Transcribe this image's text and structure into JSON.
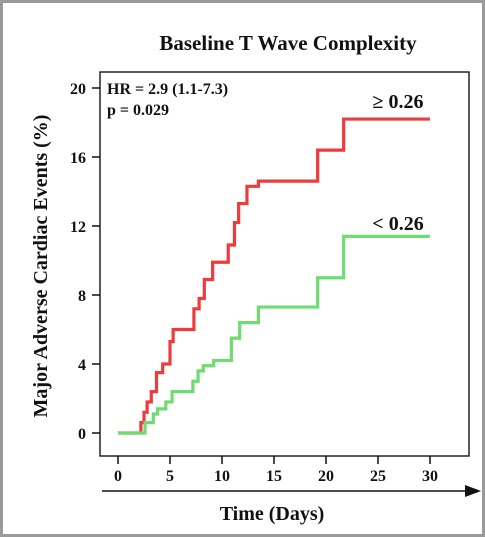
{
  "chart_data": {
    "type": "line",
    "step": true,
    "title": "Baseline T Wave Complexity",
    "xlabel": "Time (Days)",
    "ylabel": "Major Adverse Cardiac Events (%)",
    "xlim": [
      0,
      31
    ],
    "ylim": [
      0,
      20
    ],
    "xticks": [
      0,
      5,
      10,
      15,
      20,
      25,
      30
    ],
    "yticks": [
      0,
      4,
      8,
      12,
      16,
      20
    ],
    "annotations": [
      "HR = 2.9 (1.1-7.3)",
      "p = 0.029"
    ],
    "series": [
      {
        "name": "≥ 0.26",
        "color": "#ee3b3b",
        "x": [
          0,
          1.9,
          2.2,
          2.5,
          2.8,
          3.2,
          3.7,
          4.3,
          5.0,
          5.3,
          7.3,
          7.8,
          8.3,
          9.1,
          10.6,
          11.2,
          11.6,
          12.4,
          13.5,
          19.2,
          21.7,
          30
        ],
        "y": [
          0,
          0,
          0.6,
          1.2,
          1.8,
          2.4,
          3.5,
          4.0,
          5.3,
          6.0,
          7.2,
          7.8,
          8.9,
          9.9,
          10.9,
          12.2,
          13.3,
          14.3,
          14.6,
          16.4,
          18.2,
          18.2
        ]
      },
      {
        "name": "< 0.26",
        "color": "#6fdc72",
        "x": [
          0,
          2.3,
          2.6,
          3.4,
          3.8,
          4.6,
          5.2,
          7.2,
          7.7,
          8.2,
          9.2,
          10.9,
          11.7,
          13.5,
          19.2,
          21.7,
          30
        ],
        "y": [
          0,
          0,
          0.6,
          1.1,
          1.4,
          1.8,
          2.4,
          3.0,
          3.6,
          3.9,
          4.2,
          5.5,
          6.4,
          7.3,
          9.0,
          11.4,
          11.4
        ]
      }
    ]
  }
}
